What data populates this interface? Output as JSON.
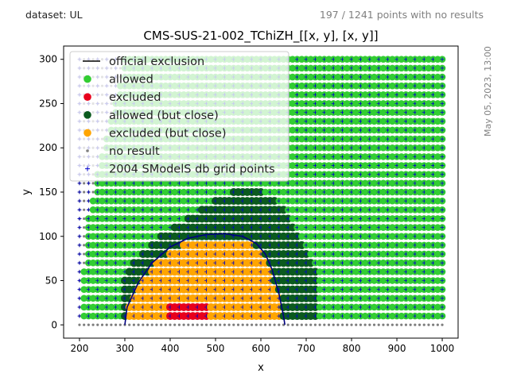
{
  "header": {
    "dataset_label": "dataset: UL",
    "points_summary": "197 / 1241 points with no results",
    "timestamp": "May 05, 2023, 13:00"
  },
  "chart_data": {
    "type": "scatter",
    "title": "CMS-SUS-21-002_TChiZH_[[x, y], [x, y]]",
    "xlabel": "x",
    "ylabel": "y",
    "xlim": [
      165,
      1035
    ],
    "ylim": [
      -15,
      315
    ],
    "xticks": [
      200,
      300,
      400,
      500,
      600,
      700,
      800,
      900,
      1000
    ],
    "yticks": [
      0,
      50,
      100,
      150,
      200,
      250,
      300
    ],
    "grid": false,
    "legend_position": "top-left",
    "colors": {
      "official_exclusion": "#000080",
      "allowed": "#32cd32",
      "excluded": "#e8001c",
      "allowed_close": "#0b5a1e",
      "excluded_close": "#ffa500",
      "no_result": "#808080",
      "db_grid": "#0000cc"
    },
    "legend": [
      {
        "key": "official_exclusion",
        "label": "official exclusion",
        "marker": "line"
      },
      {
        "key": "allowed",
        "label": "allowed",
        "marker": "dot"
      },
      {
        "key": "excluded",
        "label": "excluded",
        "marker": "dot"
      },
      {
        "key": "allowed_close",
        "label": "allowed (but close)",
        "marker": "dot"
      },
      {
        "key": "excluded_close",
        "label": "excluded (but close)",
        "marker": "dot"
      },
      {
        "key": "no_result",
        "label": "no result",
        "marker": "small-dot"
      },
      {
        "key": "db_grid",
        "label": "2004 SModelS db grid points",
        "marker": "plus"
      }
    ],
    "official_exclusion": {
      "x": [
        300,
        305,
        330,
        360,
        400,
        440,
        480,
        520,
        560,
        590,
        610,
        625,
        640,
        650,
        653
      ],
      "y": [
        0,
        20,
        48,
        70,
        88,
        98,
        102,
        103,
        100,
        92,
        80,
        62,
        35,
        10,
        0
      ]
    },
    "scan_grid": {
      "x_start": 200,
      "x_end": 1000,
      "x_step": 10,
      "y_start": 0,
      "y_end": 300,
      "y_step": 10
    },
    "regions_description": {
      "no_result_boundary": [
        [
          300,
          300
        ],
        [
          280,
          250
        ],
        [
          240,
          175
        ],
        [
          220,
          120
        ],
        [
          215,
          80
        ],
        [
          210,
          60
        ],
        [
          210,
          0
        ]
      ],
      "excluded_box": {
        "x": [
          400,
          480
        ],
        "y": [
          10,
          20
        ]
      },
      "allowed_close_band": {
        "left": [
          [
            300,
            50
          ],
          [
            320,
            60
          ],
          [
            340,
            80
          ],
          [
            380,
            100
          ],
          [
            400,
            110
          ],
          [
            430,
            120
          ],
          [
            460,
            130
          ],
          [
            500,
            140
          ],
          [
            540,
            150
          ],
          [
            620,
            150
          ],
          [
            640,
            130
          ],
          [
            660,
            110
          ]
        ],
        "right": [
          [
            660,
            120
          ],
          [
            680,
            90
          ],
          [
            700,
            60
          ],
          [
            720,
            30
          ],
          [
            720,
            10
          ]
        ]
      }
    }
  }
}
